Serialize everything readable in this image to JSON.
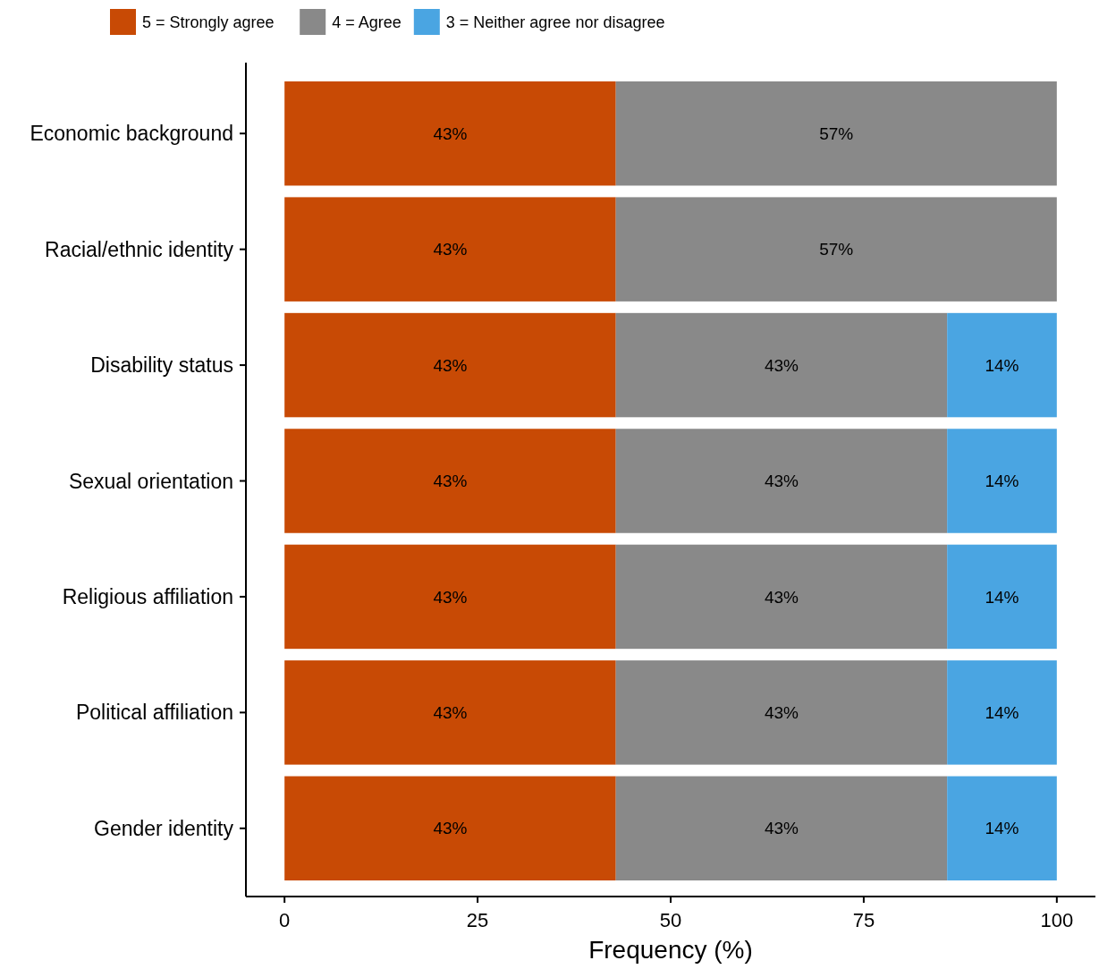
{
  "chart_data": {
    "type": "bar",
    "orientation": "horizontal",
    "stacked": true,
    "xlabel": "Frequency (%)",
    "categories": [
      "Economic background",
      "Racial/ethnic identity",
      "Disability status",
      "Sexual orientation",
      "Religious affiliation",
      "Political affiliation",
      "Gender identity"
    ],
    "series": [
      {
        "name": "5 = Strongly agree",
        "color": "#c84a05",
        "values": [
          42.9,
          42.9,
          42.9,
          42.9,
          42.9,
          42.9,
          42.9
        ],
        "value_labels": [
          "43%",
          "43%",
          "43%",
          "43%",
          "43%",
          "43%",
          "43%"
        ]
      },
      {
        "name": "4 = Agree",
        "color": "#898989",
        "values": [
          57.1,
          57.1,
          42.9,
          42.9,
          42.9,
          42.9,
          42.9
        ],
        "value_labels": [
          "57%",
          "57%",
          "43%",
          "43%",
          "43%",
          "43%",
          "43%"
        ]
      },
      {
        "name": "3 = Neither agree nor disagree",
        "color": "#4aa5e2",
        "values": [
          null,
          null,
          14.2,
          14.2,
          14.2,
          14.2,
          14.2
        ],
        "value_labels": [
          null,
          null,
          "14%",
          "14%",
          "14%",
          "14%",
          "14%"
        ]
      }
    ],
    "xlim": [
      -5,
      105
    ],
    "xticks": [
      0,
      25,
      50,
      75,
      100
    ],
    "grid": false,
    "legend": "top left"
  }
}
